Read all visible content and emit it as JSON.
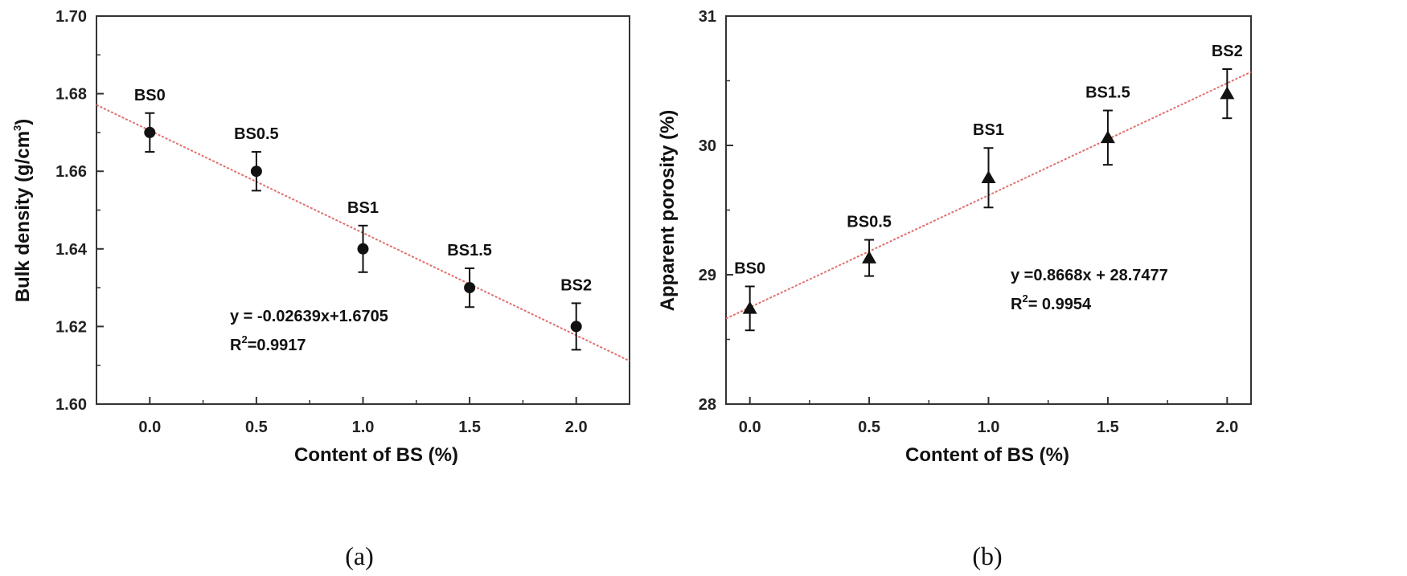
{
  "chart_data": [
    {
      "type": "scatter",
      "panel_label": "(a)",
      "xlabel": "Content of BS (%)",
      "ylabel_main": "Bulk density (g/cm",
      "ylabel_sup": "3",
      "ylabel_tail": ")",
      "xlim": [
        -0.25,
        2.25
      ],
      "ylim": [
        1.6,
        1.7
      ],
      "xticks": [
        0.0,
        0.5,
        1.0,
        1.5,
        2.0
      ],
      "xtick_labels": [
        "0.0",
        "0.5",
        "1.0",
        "1.5",
        "2.0"
      ],
      "yticks": [
        1.6,
        1.62,
        1.64,
        1.66,
        1.68,
        1.7
      ],
      "ytick_labels": [
        "1.60",
        "1.62",
        "1.64",
        "1.66",
        "1.68",
        "1.70"
      ],
      "marker": "circle",
      "points": [
        {
          "label": "BS0",
          "x": 0.0,
          "y": 1.67,
          "err": 0.005
        },
        {
          "label": "BS0.5",
          "x": 0.5,
          "y": 1.66,
          "err": 0.005
        },
        {
          "label": "BS1",
          "x": 1.0,
          "y": 1.64,
          "err": 0.006
        },
        {
          "label": "BS1.5",
          "x": 1.5,
          "y": 1.63,
          "err": 0.005
        },
        {
          "label": "BS2",
          "x": 2.0,
          "y": 1.62,
          "err": 0.006
        }
      ],
      "fit": {
        "slope": -0.02639,
        "intercept": 1.6705,
        "x_range": [
          -0.25,
          2.25
        ],
        "color": "#e07070"
      },
      "equation": "y = -0.02639x+1.6705",
      "r2_prefix": "R",
      "r2_sup": "2",
      "r2_value": "=0.9917"
    },
    {
      "type": "scatter",
      "panel_label": "(b)",
      "xlabel": "Content of BS (%)",
      "ylabel": "Apparent porosity (%)",
      "xlim": [
        -0.1,
        2.1
      ],
      "ylim": [
        28,
        31
      ],
      "xticks": [
        0.0,
        0.5,
        1.0,
        1.5,
        2.0
      ],
      "xtick_labels": [
        "0.0",
        "0.5",
        "1.0",
        "1.5",
        "2.0"
      ],
      "yticks": [
        28,
        29,
        30,
        31
      ],
      "ytick_labels": [
        "28",
        "29",
        "30",
        "31"
      ],
      "marker": "triangle",
      "points": [
        {
          "label": "BS0",
          "x": 0.0,
          "y": 28.74,
          "err": 0.17
        },
        {
          "label": "BS0.5",
          "x": 0.5,
          "y": 29.13,
          "err": 0.14
        },
        {
          "label": "BS1",
          "x": 1.0,
          "y": 29.75,
          "err": 0.23
        },
        {
          "label": "BS1.5",
          "x": 1.5,
          "y": 30.06,
          "err": 0.21
        },
        {
          "label": "BS2",
          "x": 2.0,
          "y": 30.4,
          "err": 0.19
        }
      ],
      "fit": {
        "slope": 0.8668,
        "intercept": 28.7477,
        "x_range": [
          -0.1,
          2.1
        ],
        "color": "#e07070"
      },
      "equation": "y =0.8668x + 28.7477",
      "r2_prefix": "R",
      "r2_sup": "2",
      "r2_value": "= 0.9954"
    }
  ]
}
